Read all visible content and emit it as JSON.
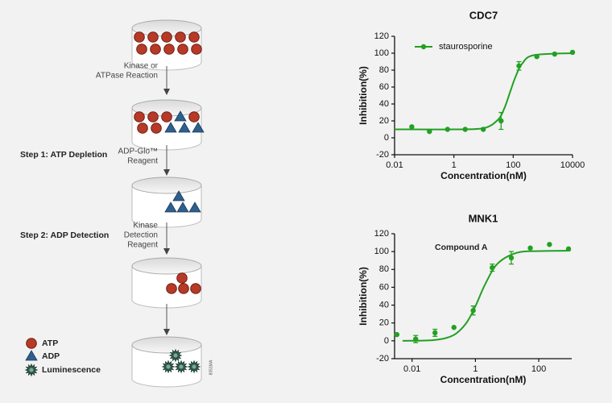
{
  "diagram": {
    "reagents": [
      {
        "lines": [
          "Kinase or",
          "ATPase Reaction"
        ]
      },
      {
        "lines": [
          "ADP-Glo™",
          "Reagent"
        ]
      },
      {
        "lines": [
          "Kinase",
          "Detection",
          "Reagent"
        ]
      }
    ],
    "steps": [
      "Step 1: ATP Depletion",
      "Step 2: ADP Detection"
    ],
    "legend": [
      "ATP",
      "ADP",
      "Luminescence"
    ],
    "code": "8051MA"
  },
  "chart_data": [
    {
      "type": "scatter",
      "title": "CDC7",
      "x_label": "Concentration(nM)",
      "y_label": "Inhibition(%)",
      "xscale": "log",
      "xlim": [
        0.01,
        10000
      ],
      "xticks": [
        0.01,
        1,
        100,
        10000
      ],
      "ylim": [
        -20,
        120
      ],
      "yticks": [
        -20,
        0,
        20,
        40,
        60,
        80,
        100,
        120
      ],
      "legend": "upper left",
      "series": [
        {
          "name": "staurosporine",
          "color": "#22a022",
          "x": [
            0.038,
            0.15,
            0.61,
            2.4,
            9.8,
            39,
            156,
            625,
            2500,
            10000
          ],
          "values": [
            13,
            7.5,
            10,
            10,
            10,
            20,
            85,
            96,
            99,
            101
          ],
          "errors": [
            null,
            null,
            null,
            null,
            null,
            10,
            5,
            null,
            null,
            null
          ]
        }
      ],
      "fit": {
        "color": "#22a022",
        "x": [
          0.01,
          1,
          10,
          30,
          50,
          80,
          120,
          200,
          500,
          10000
        ],
        "values": [
          10,
          10,
          11.4,
          21.1,
          34.7,
          55,
          72.3,
          87.6,
          97.7,
          100
        ]
      }
    },
    {
      "type": "scatter",
      "title": "MNK1",
      "x_label": "Concentration(nM)",
      "y_label": "Inhibition(%)",
      "annotation": "Compound A",
      "xscale": "log",
      "xlim": [
        0.0028,
        1100
      ],
      "xticks": [
        0.01,
        1,
        100
      ],
      "ylim": [
        -20,
        120
      ],
      "yticks": [
        -20,
        0,
        20,
        40,
        60,
        80,
        100,
        120
      ],
      "series": [
        {
          "color": "#22a022",
          "x": [
            0.0033,
            0.013,
            0.053,
            0.21,
            0.85,
            3.4,
            13.6,
            54,
            218,
            870
          ],
          "values": [
            7,
            2,
            9,
            15,
            34,
            82,
            93,
            104,
            108,
            103
          ],
          "errors": [
            null,
            4,
            4,
            null,
            5,
            4,
            7,
            null,
            null,
            null
          ]
        }
      ],
      "fit": {
        "color": "#22a022",
        "x": [
          0.005,
          0.05,
          0.2,
          0.5,
          1,
          2,
          5,
          20,
          100,
          1000
        ],
        "values": [
          0,
          0.9,
          6.2,
          19.3,
          38.8,
          62.9,
          86.5,
          98.6,
          100.6,
          101
        ]
      }
    }
  ]
}
